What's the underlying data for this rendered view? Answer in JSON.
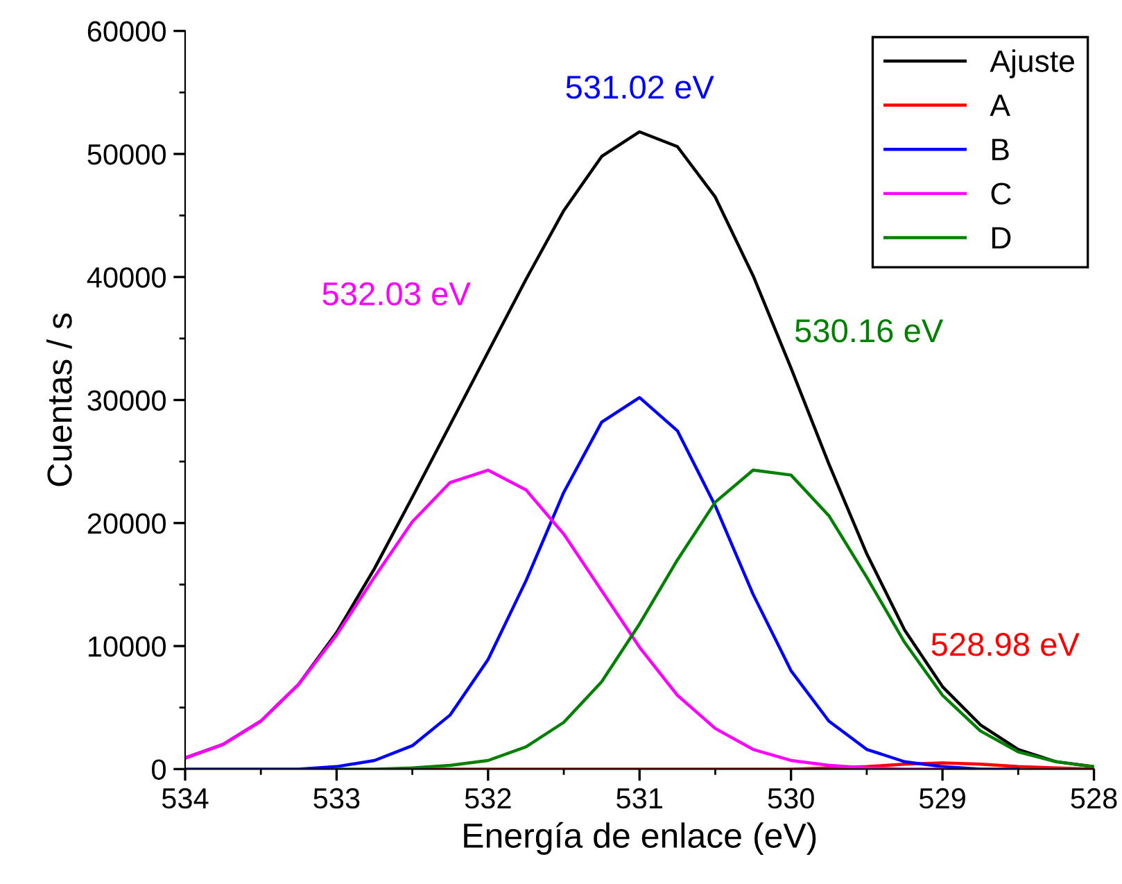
{
  "chart_data": {
    "type": "line",
    "xlabel": "Energía de enlace (eV)",
    "ylabel": "Cuentas / s",
    "x": [
      534,
      533.75,
      533.5,
      533.25,
      533,
      532.75,
      532.5,
      532.25,
      532,
      531.75,
      531.5,
      531.25,
      531,
      530.75,
      530.5,
      530.25,
      530,
      529.75,
      529.5,
      529.25,
      529,
      528.75,
      528.5,
      528.25,
      528
    ],
    "series": [
      {
        "name": "Ajuste",
        "color": "#000000",
        "values": [
          900,
          2000,
          3900,
          6900,
          11100,
          16300,
          22100,
          28000,
          33900,
          39800,
          45400,
          49800,
          51800,
          50600,
          46500,
          40100,
          32600,
          24800,
          17500,
          11300,
          6700,
          3600,
          1600,
          600,
          200
        ]
      },
      {
        "name": "A",
        "color": "#ff0000",
        "values": [
          null,
          null,
          null,
          null,
          null,
          null,
          0,
          0,
          0,
          0,
          0,
          0,
          0,
          0,
          0,
          0,
          0,
          100,
          200,
          400,
          500,
          400,
          200,
          100,
          0
        ]
      },
      {
        "name": "B",
        "color": "#0000ff",
        "values": [
          0,
          0,
          0,
          0,
          200,
          700,
          1900,
          4400,
          8900,
          15300,
          22500,
          28200,
          30200,
          27500,
          21400,
          14200,
          8000,
          3900,
          1600,
          600,
          200,
          0,
          0,
          null,
          null
        ]
      },
      {
        "name": "C",
        "color": "#ff00ff",
        "values": [
          900,
          2000,
          3900,
          6900,
          10900,
          15600,
          20100,
          23300,
          24300,
          22700,
          19100,
          14500,
          9900,
          6000,
          3300,
          1600,
          700,
          300,
          100,
          0,
          0,
          null,
          null,
          null,
          null
        ]
      },
      {
        "name": "D",
        "color": "#008000",
        "values": [
          null,
          null,
          null,
          null,
          0,
          0,
          100,
          300,
          700,
          1800,
          3800,
          7100,
          11800,
          17000,
          21700,
          24300,
          23900,
          20600,
          15600,
          10300,
          6000,
          3100,
          1400,
          600,
          200
        ]
      }
    ],
    "annotations": [
      "531.02 eV",
      "532.03 eV",
      "530.16 eV",
      "528.98 eV"
    ],
    "xlim": [
      534,
      528
    ],
    "ylim": [
      0,
      60000
    ],
    "xticks": [
      534,
      {
        "value": 533.5,
        "label": null
      },
      533,
      {
        "value": 532.5,
        "label": null
      },
      532,
      {
        "value": 531.5,
        "label": null
      },
      531,
      {
        "value": 530.5,
        "label": null
      },
      530,
      {
        "value": 529.5,
        "label": null
      },
      529,
      {
        "value": 528.5,
        "label": null
      },
      528
    ],
    "yticks": [
      0,
      {
        "value": 5000,
        "label": null
      },
      10000,
      {
        "value": 15000,
        "label": null
      },
      20000,
      {
        "value": 25000,
        "label": null
      },
      30000,
      {
        "value": 35000,
        "label": null
      },
      40000,
      {
        "value": 45000,
        "label": null
      },
      50000,
      {
        "value": 55000,
        "label": null
      },
      60000
    ],
    "legend": "top right",
    "grid": false
  }
}
